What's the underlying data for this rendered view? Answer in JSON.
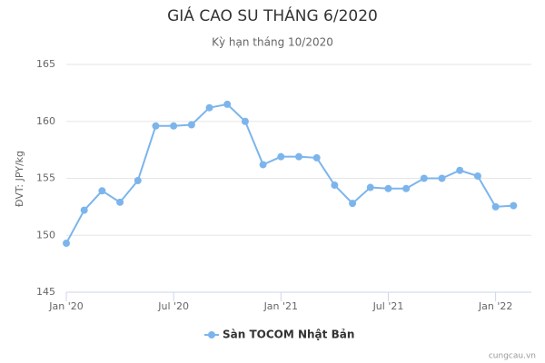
{
  "chart_data": {
    "type": "line",
    "title": "GIÁ CAO SU THÁNG 6/2020",
    "subtitle": "Kỳ hạn tháng 10/2020",
    "y_label": "ĐVT: JPY/kg",
    "credit": "cungcau.vn",
    "x": [
      "2020-01",
      "2020-02",
      "2020-03",
      "2020-04",
      "2020-05",
      "2020-06",
      "2020-07",
      "2020-08",
      "2020-09",
      "2020-10",
      "2020-11",
      "2020-12",
      "2021-01",
      "2021-02",
      "2021-03",
      "2021-04",
      "2021-05",
      "2021-06",
      "2021-07",
      "2021-08",
      "2021-09",
      "2021-10",
      "2021-11",
      "2021-12",
      "2022-01",
      "2022-02"
    ],
    "series": [
      {
        "name": "Sàn TOCOM Nhật Bản",
        "color": "#7cb5ec",
        "values": [
          149.3,
          152.2,
          153.9,
          152.9,
          154.8,
          159.6,
          159.6,
          159.7,
          161.2,
          161.5,
          160.0,
          156.2,
          156.9,
          156.9,
          156.8,
          154.4,
          152.8,
          154.2,
          154.1,
          154.1,
          155.0,
          155.0,
          155.7,
          155.2,
          152.5,
          152.6
        ]
      }
    ],
    "xlim": [
      "2020-01",
      "2022-03"
    ],
    "xticks": [
      {
        "value": "2020-01",
        "label": "Jan '20"
      },
      {
        "value": "2020-07",
        "label": "Jul '20"
      },
      {
        "value": "2021-01",
        "label": "Jan '21"
      },
      {
        "value": "2021-07",
        "label": "Jul '21"
      },
      {
        "value": "2022-01",
        "label": "Jan '22"
      }
    ],
    "ylim": [
      145,
      165
    ],
    "yticks": [
      145,
      150,
      155,
      160,
      165
    ],
    "grid": true
  }
}
